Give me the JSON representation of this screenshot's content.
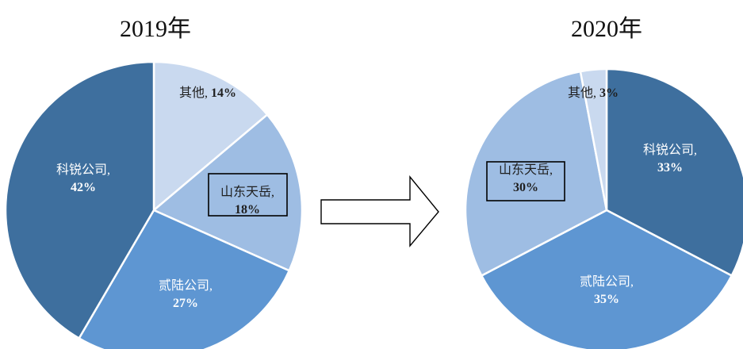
{
  "chart_data": [
    {
      "type": "pie",
      "title": "2019年",
      "slices": [
        {
          "label": "其他",
          "value": 14,
          "value_text": "14%",
          "color": "#c9d9ef",
          "text_color": "#1f1f1f",
          "boxed": false
        },
        {
          "label": "山东天岳",
          "value": 18,
          "value_text": "18%",
          "color": "#9ebde3",
          "text_color": "#1f1f1f",
          "boxed": true
        },
        {
          "label": "贰陆公司",
          "value": 27,
          "value_text": "27%",
          "color": "#5e96d2",
          "text_color": "#ffffff",
          "boxed": false
        },
        {
          "label": "科锐公司",
          "value": 42,
          "value_text": "42%",
          "color": "#3e6f9e",
          "text_color": "#ffffff",
          "boxed": false
        }
      ]
    },
    {
      "type": "pie",
      "title": "2020年",
      "slices": [
        {
          "label": "科锐公司",
          "value": 33,
          "value_text": "33%",
          "color": "#3e6f9e",
          "text_color": "#ffffff",
          "boxed": false
        },
        {
          "label": "贰陆公司",
          "value": 35,
          "value_text": "35%",
          "color": "#5e96d2",
          "text_color": "#ffffff",
          "boxed": false
        },
        {
          "label": "山东天岳",
          "value": 30,
          "value_text": "30%",
          "color": "#9ebde3",
          "text_color": "#1f1f1f",
          "boxed": true
        },
        {
          "label": "其他",
          "value": 3,
          "value_text": "3%",
          "color": "#c9d9ef",
          "text_color": "#1f1f1f",
          "boxed": false
        }
      ]
    }
  ],
  "arrow_icon": "right-arrow-icon"
}
